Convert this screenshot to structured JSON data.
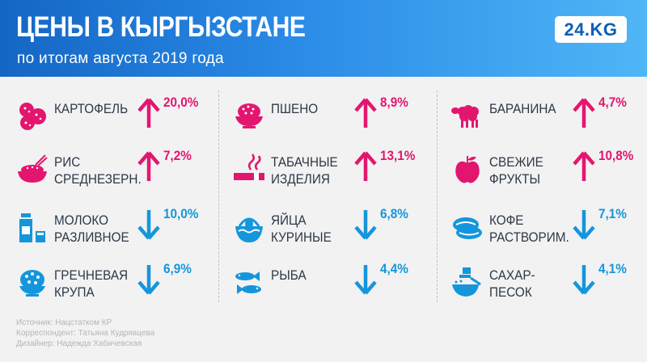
{
  "header": {
    "title": "ЦЕНЫ В КЫРГЫЗСТАНЕ",
    "subtitle": "по итогам августа 2019 года",
    "logo": "24.KG"
  },
  "colors": {
    "up": "#e3166f",
    "down": "#1496dc",
    "header_start": "#1466c4",
    "header_end": "#4fb6f7"
  },
  "items": [
    {
      "label": "КАРТОФЕЛЬ",
      "change": "20,0%",
      "direction": "up",
      "icon": "potato-icon"
    },
    {
      "label": "РИС\nСРЕДНЕЗЕРН.",
      "change": "7,2%",
      "direction": "up",
      "icon": "rice-bowl-icon"
    },
    {
      "label": "МОЛОКО\nРАЗЛИВНОЕ",
      "change": "10,0%",
      "direction": "down",
      "icon": "milk-icon"
    },
    {
      "label": "ГРЕЧНЕВАЯ\nКРУПА",
      "change": "6,9%",
      "direction": "down",
      "icon": "buckwheat-icon"
    },
    {
      "label": "ПШЕНО",
      "change": "8,9%",
      "direction": "up",
      "icon": "millet-icon"
    },
    {
      "label": "ТАБАЧНЫЕ\nИЗДЕЛИЯ",
      "change": "13,1%",
      "direction": "up",
      "icon": "cigarette-icon"
    },
    {
      "label": "ЯЙЦА\nКУРИНЫЕ",
      "change": "6,8%",
      "direction": "down",
      "icon": "egg-basket-icon"
    },
    {
      "label": "РЫБА",
      "change": "4,4%",
      "direction": "down",
      "icon": "fish-icon"
    },
    {
      "label": "БАРАНИНА",
      "change": "4,7%",
      "direction": "up",
      "icon": "sheep-icon"
    },
    {
      "label": "СВЕЖИЕ\nФРУКТЫ",
      "change": "10,8%",
      "direction": "up",
      "icon": "apple-icon"
    },
    {
      "label": "КОФЕ\nРАСТВОРИМ.",
      "change": "7,1%",
      "direction": "down",
      "icon": "coffee-beans-icon"
    },
    {
      "label": "САХАР-\nПЕСОК",
      "change": "4,1%",
      "direction": "down",
      "icon": "sugar-icon"
    }
  ],
  "footer": {
    "source": "Источник: Нацстатком КР",
    "correspondent": "Корреспондент: Татьяна Кудрявцева",
    "designer": "Дизайнер: Надежда Хабичевская"
  }
}
